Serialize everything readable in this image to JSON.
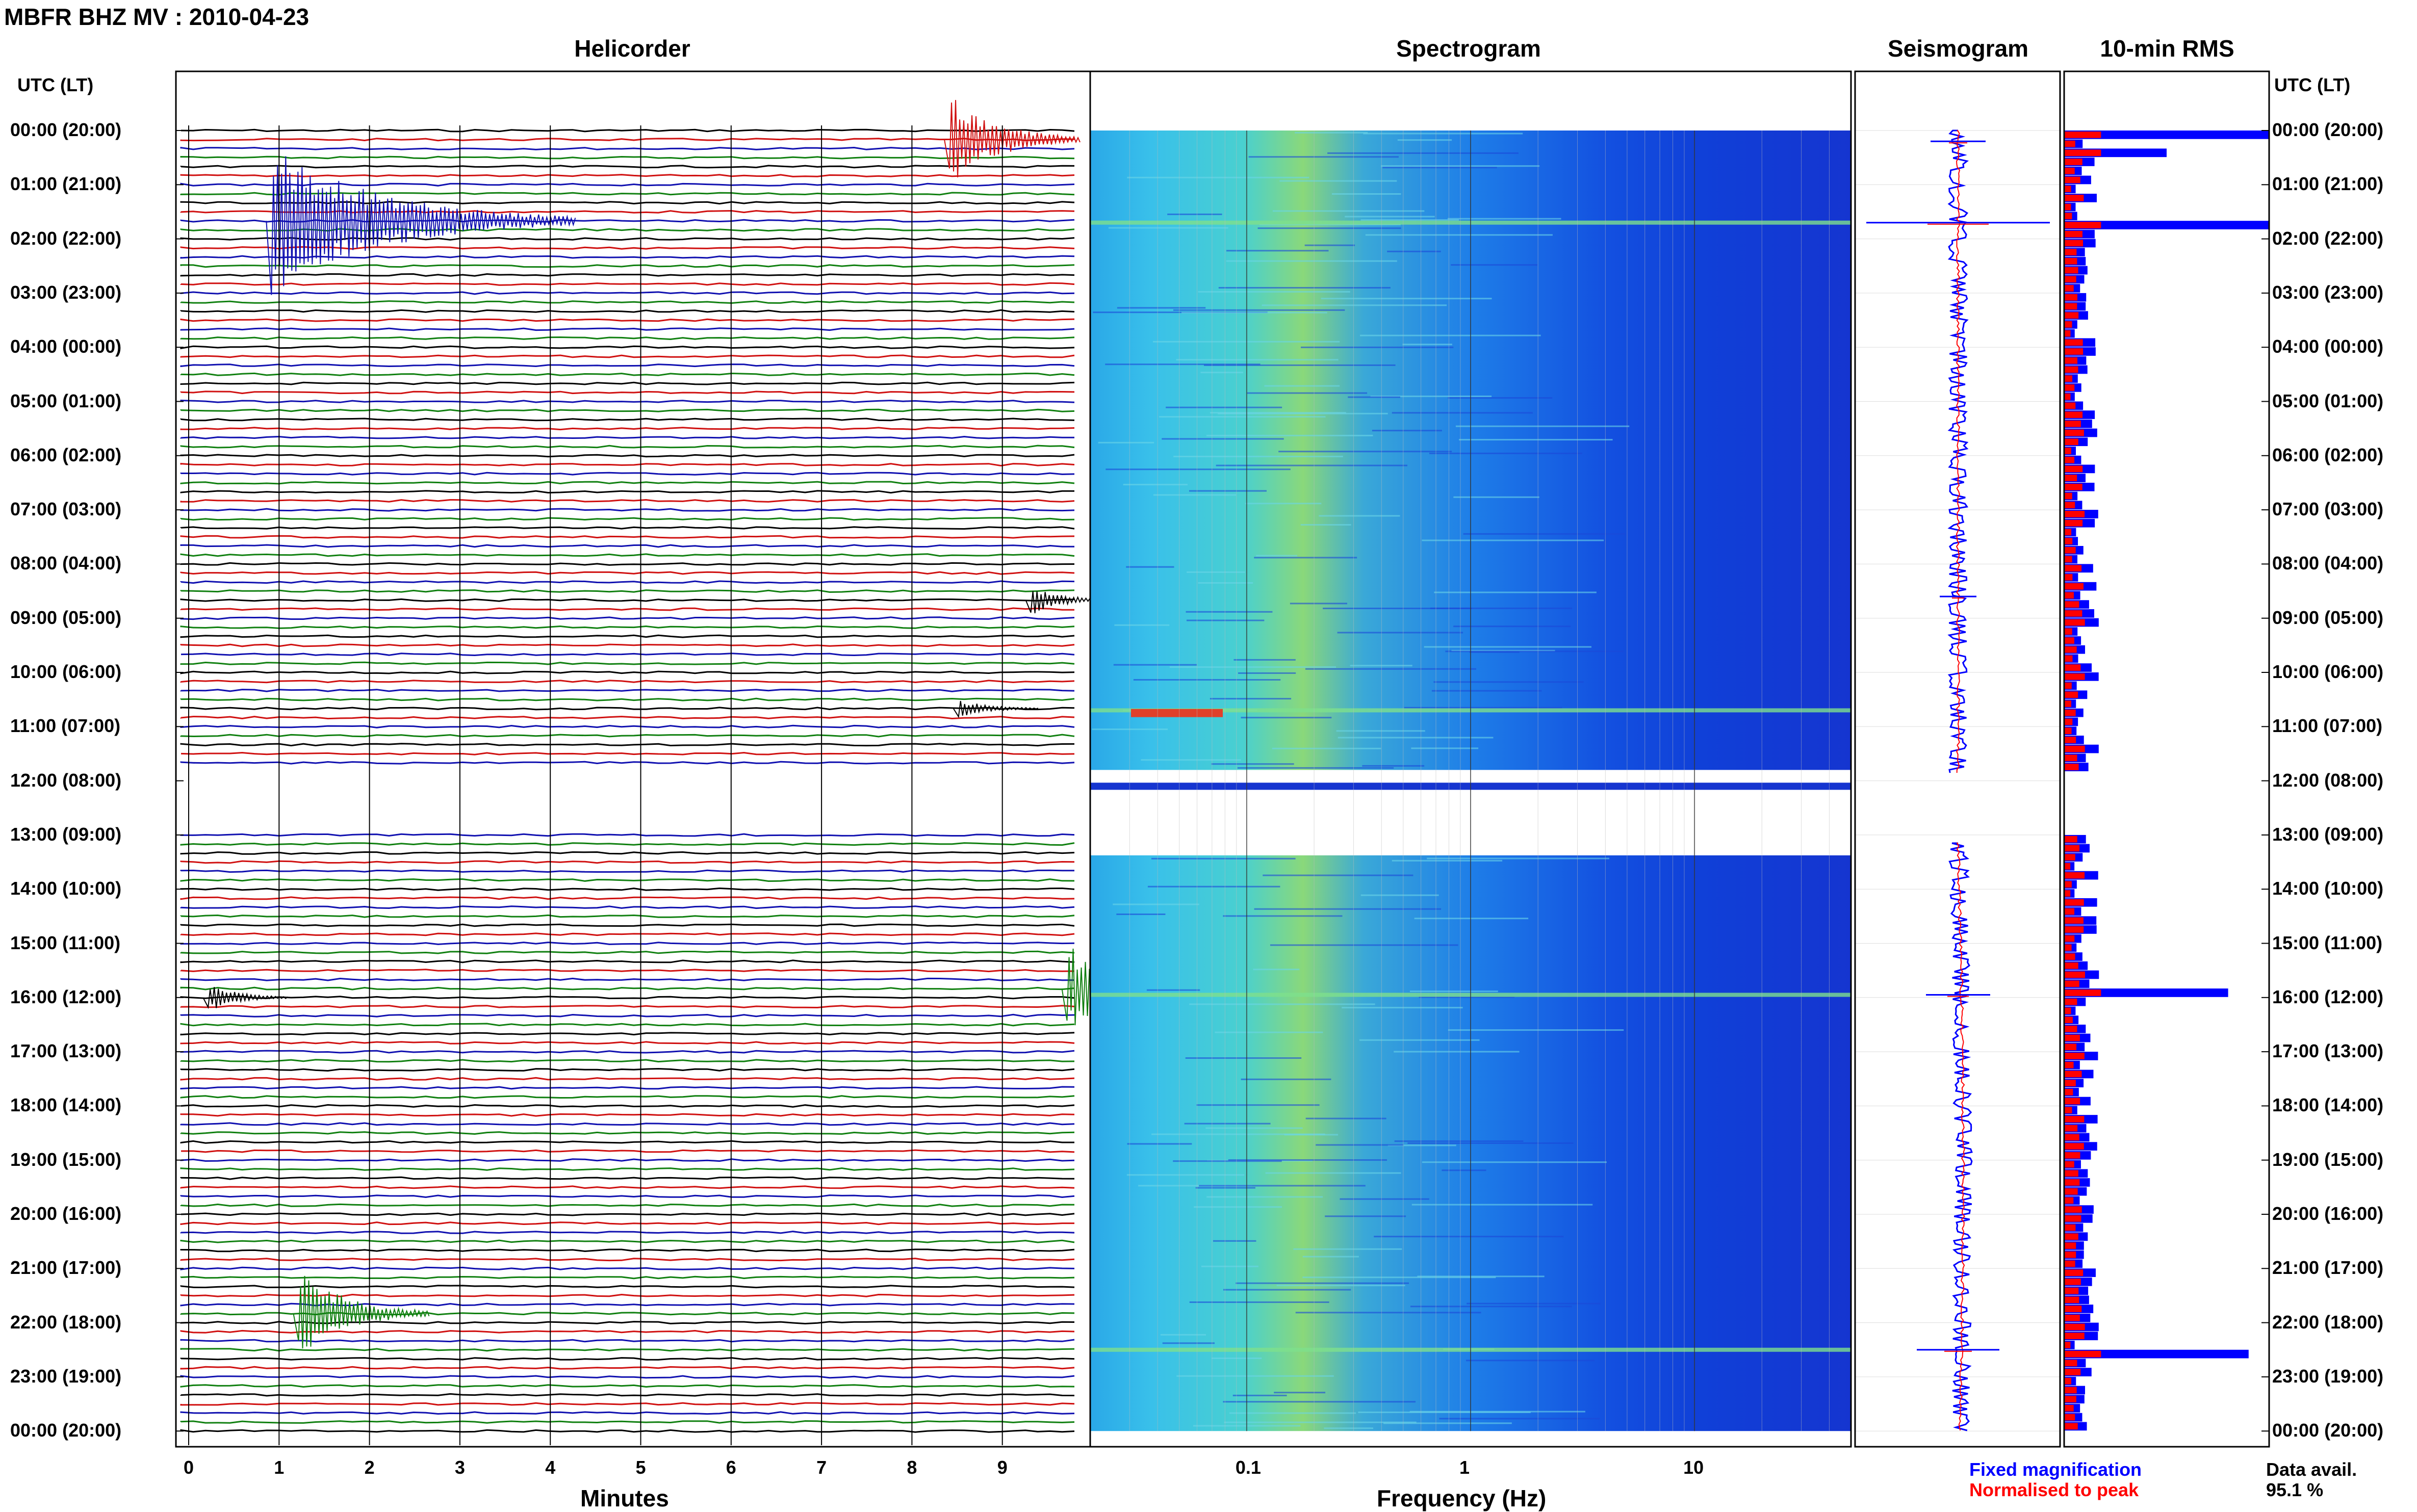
{
  "header": {
    "title": "MBFR BHZ MV : 2010-04-23"
  },
  "panels": {
    "helicorder": "Helicorder",
    "spectrogram": "Spectrogram",
    "seismogram": "Seismogram",
    "rms": "10-min RMS"
  },
  "time_axis": {
    "header_left": "UTC (LT)",
    "header_right": "UTC (LT)",
    "labels": [
      "00:00 (20:00)",
      "01:00 (21:00)",
      "02:00 (22:00)",
      "03:00 (23:00)",
      "04:00 (00:00)",
      "05:00 (01:00)",
      "06:00 (02:00)",
      "07:00 (03:00)",
      "08:00 (04:00)",
      "09:00 (05:00)",
      "10:00 (06:00)",
      "11:00 (07:00)",
      "12:00 (08:00)",
      "13:00 (09:00)",
      "14:00 (10:00)",
      "15:00 (11:00)",
      "16:00 (12:00)",
      "17:00 (13:00)",
      "18:00 (14:00)",
      "19:00 (15:00)",
      "20:00 (16:00)",
      "21:00 (17:00)",
      "22:00 (18:00)",
      "23:00 (19:00)",
      "00:00 (20:00)"
    ]
  },
  "helicorder_axis": {
    "xlabel": "Minutes",
    "ticks": [
      "0",
      "1",
      "2",
      "3",
      "4",
      "5",
      "6",
      "7",
      "8",
      "9"
    ],
    "trace_colors": [
      "#000000",
      "#d01010",
      "#1010b0",
      "#108010"
    ]
  },
  "spectrogram_axis": {
    "xlabel": "Frequency (Hz)",
    "ticks": [
      "0.1",
      "1",
      "10"
    ],
    "scale": "log",
    "xlim": [
      0.02,
      50
    ]
  },
  "legend": {
    "fixed": "Fixed magnification",
    "fixed_color": "#0000ff",
    "normalised": "Normalised to peak",
    "normalised_color": "#ff0000",
    "avail_label": "Data avail.",
    "avail_value": "95.1 %"
  },
  "chart_data": [
    {
      "type": "line",
      "title": "Helicorder",
      "xlabel": "Minutes",
      "xlim": [
        0,
        10
      ],
      "rows_per_hour": 6,
      "data_gap_utc": [
        "11:50",
        "13:00"
      ],
      "events": [
        {
          "utc": "00:10",
          "minute": 8.5,
          "amplitude": "large"
        },
        {
          "utc": "01:40",
          "minute": 1.0,
          "amplitude": "very large"
        },
        {
          "utc": "08:40",
          "minute": 9.4,
          "amplitude": "medium"
        },
        {
          "utc": "10:40",
          "minute": 8.6,
          "amplitude": "small"
        },
        {
          "utc": "15:50",
          "minute": 9.8,
          "amplitude": "large"
        },
        {
          "utc": "16:00",
          "minute": 0.3,
          "amplitude": "medium"
        },
        {
          "utc": "21:50",
          "minute": 1.3,
          "amplitude": "large"
        }
      ]
    },
    {
      "type": "heatmap",
      "title": "Spectrogram",
      "xlabel": "Frequency (Hz)",
      "xscale": "log",
      "xlim": [
        0.02,
        50
      ]
    },
    {
      "type": "line",
      "title": "Seismogram",
      "series": [
        {
          "name": "Fixed magnification",
          "color": "#0000ff"
        },
        {
          "name": "Normalised to peak",
          "color": "#ff0000"
        }
      ]
    },
    {
      "type": "bar",
      "title": "10-min RMS",
      "series": [
        {
          "name": "Fixed magnification",
          "color": "#0000ff",
          "spikes": [
            {
              "utc": "00:00",
              "value": 1.0
            },
            {
              "utc": "00:20",
              "value": 0.5
            },
            {
              "utc": "01:40",
              "value": 1.0
            },
            {
              "utc": "15:50",
              "value": 0.8
            },
            {
              "utc": "22:30",
              "value": 0.9
            }
          ]
        },
        {
          "name": "Normalised to peak",
          "color": "#ff0000"
        }
      ],
      "data_available_percent": 95.1
    }
  ]
}
